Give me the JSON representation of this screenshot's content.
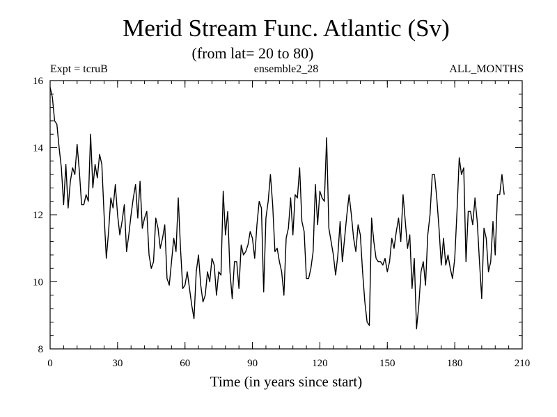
{
  "chart_data": {
    "type": "line",
    "title": "Merid Stream Func. Atlantic (Sv)",
    "subtitle": "(from lat= 20 to 80)",
    "header_left": "Expt = tcruB",
    "header_center": "ensemble2_28",
    "header_right": "ALL_MONTHS",
    "xlabel": "Time (in years since start)",
    "ylabel": "",
    "xlim": [
      0,
      210
    ],
    "ylim": [
      8,
      16
    ],
    "x_ticks": [
      0,
      30,
      60,
      90,
      120,
      150,
      180,
      210
    ],
    "y_ticks": [
      8,
      10,
      12,
      14,
      16
    ],
    "x_minor_step": 6,
    "y_minor_step": 0.4,
    "grid": false,
    "series": [
      {
        "name": "Merid Stream Func. Atlantic",
        "x_start": 0,
        "x_step": 1,
        "values": [
          15.8,
          15.5,
          14.8,
          14.7,
          14.0,
          13.4,
          12.3,
          13.5,
          12.2,
          13.0,
          13.4,
          13.2,
          14.1,
          13.3,
          12.3,
          12.3,
          12.6,
          12.4,
          14.4,
          12.8,
          13.5,
          13.1,
          13.8,
          13.5,
          12.0,
          10.7,
          11.5,
          12.5,
          12.2,
          12.9,
          12.0,
          11.4,
          11.8,
          12.3,
          10.9,
          11.4,
          12.0,
          12.5,
          12.9,
          11.9,
          13.0,
          11.6,
          11.9,
          12.1,
          10.8,
          10.4,
          10.6,
          11.9,
          11.6,
          11.0,
          11.3,
          11.7,
          10.1,
          9.9,
          10.6,
          11.3,
          10.9,
          12.5,
          11.0,
          9.8,
          9.9,
          10.3,
          9.8,
          9.3,
          8.9,
          10.3,
          10.8,
          9.9,
          9.4,
          9.6,
          10.3,
          10.0,
          10.7,
          10.5,
          9.6,
          10.3,
          10.2,
          12.7,
          11.4,
          12.1,
          10.3,
          9.5,
          10.6,
          10.6,
          9.8,
          11.1,
          10.8,
          10.9,
          11.1,
          11.5,
          11.3,
          10.7,
          11.7,
          12.4,
          12.2,
          9.7,
          11.9,
          12.4,
          13.2,
          12.3,
          10.9,
          11.0,
          10.6,
          10.3,
          9.6,
          11.3,
          11.6,
          12.5,
          11.4,
          12.6,
          12.5,
          13.4,
          11.8,
          11.5,
          10.1,
          10.1,
          10.4,
          10.9,
          12.9,
          11.7,
          12.7,
          12.5,
          12.4,
          14.3,
          11.6,
          11.2,
          10.8,
          10.2,
          10.8,
          11.8,
          10.6,
          11.3,
          12.0,
          12.6,
          12.0,
          11.3,
          10.9,
          11.7,
          11.4,
          10.3,
          9.4,
          8.8,
          8.7,
          11.9,
          11.2,
          10.7,
          10.6,
          10.6,
          10.5,
          10.7,
          10.3,
          10.6,
          11.3,
          11.0,
          11.5,
          11.9,
          11.2,
          12.6,
          11.8,
          11.0,
          11.4,
          9.8,
          10.7,
          8.6,
          9.3,
          10.3,
          10.6,
          9.9,
          11.4,
          12.0,
          13.2,
          13.2,
          12.5,
          11.6,
          10.5,
          11.3,
          10.5,
          10.8,
          10.4,
          10.1,
          10.7,
          12.1,
          13.7,
          13.2,
          13.4,
          10.6,
          12.1,
          12.1,
          11.7,
          12.5,
          11.8,
          10.6,
          9.5,
          11.6,
          11.3,
          10.3,
          10.6,
          11.8,
          10.8,
          12.6,
          12.6,
          13.2,
          12.6
        ]
      }
    ]
  }
}
